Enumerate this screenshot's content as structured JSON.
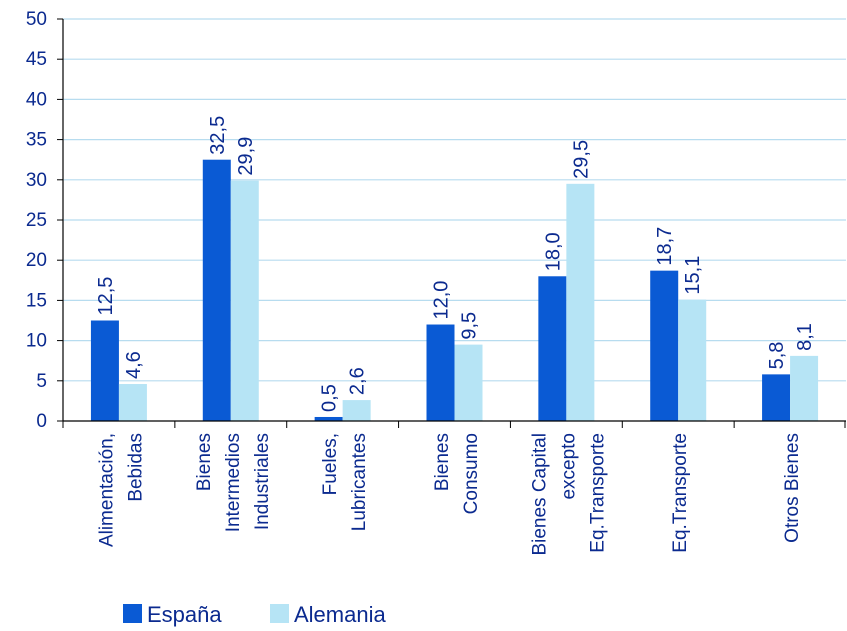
{
  "chart_data": {
    "type": "bar",
    "title": "",
    "xlabel": "",
    "ylabel": "",
    "ylim": [
      0,
      50
    ],
    "yticks": [
      0,
      5,
      10,
      15,
      20,
      25,
      30,
      35,
      40,
      45,
      50
    ],
    "ytick_labels": [
      "0",
      "5",
      "10",
      "15",
      "20",
      "25",
      "30",
      "35",
      "40",
      "45",
      "50"
    ],
    "grid": true,
    "legend_position": "bottom-left",
    "categories": [
      [
        "Alimentación,",
        "Bebidas"
      ],
      [
        "Bienes",
        "Intermedios",
        "Industriales"
      ],
      [
        "Fueles,",
        "Lubricantes"
      ],
      [
        "Bienes",
        "Consumo"
      ],
      [
        "Bienes Capital",
        "excepto",
        "Eq.Transporte"
      ],
      [
        "Eq.Transporte"
      ],
      [
        "Otros Bienes"
      ]
    ],
    "series": [
      {
        "name": "España",
        "color": "#0a5ad4",
        "values": [
          12.5,
          32.5,
          0.5,
          12.0,
          18.0,
          18.7,
          5.8
        ],
        "labels": [
          "12,5",
          "32,5",
          "0,5",
          "12,0",
          "18,0",
          "18,7",
          "5,8"
        ]
      },
      {
        "name": "Alemania",
        "color": "#b6e4f5",
        "values": [
          4.6,
          29.9,
          2.6,
          9.5,
          29.5,
          15.1,
          8.1
        ],
        "labels": [
          "4,6",
          "29,9",
          "2,6",
          "9,5",
          "29,5",
          "15,1",
          "8,1"
        ]
      }
    ],
    "colors": {
      "axis": "#000000",
      "grid": "#b7dcef",
      "text": "#0b2a8f"
    }
  }
}
